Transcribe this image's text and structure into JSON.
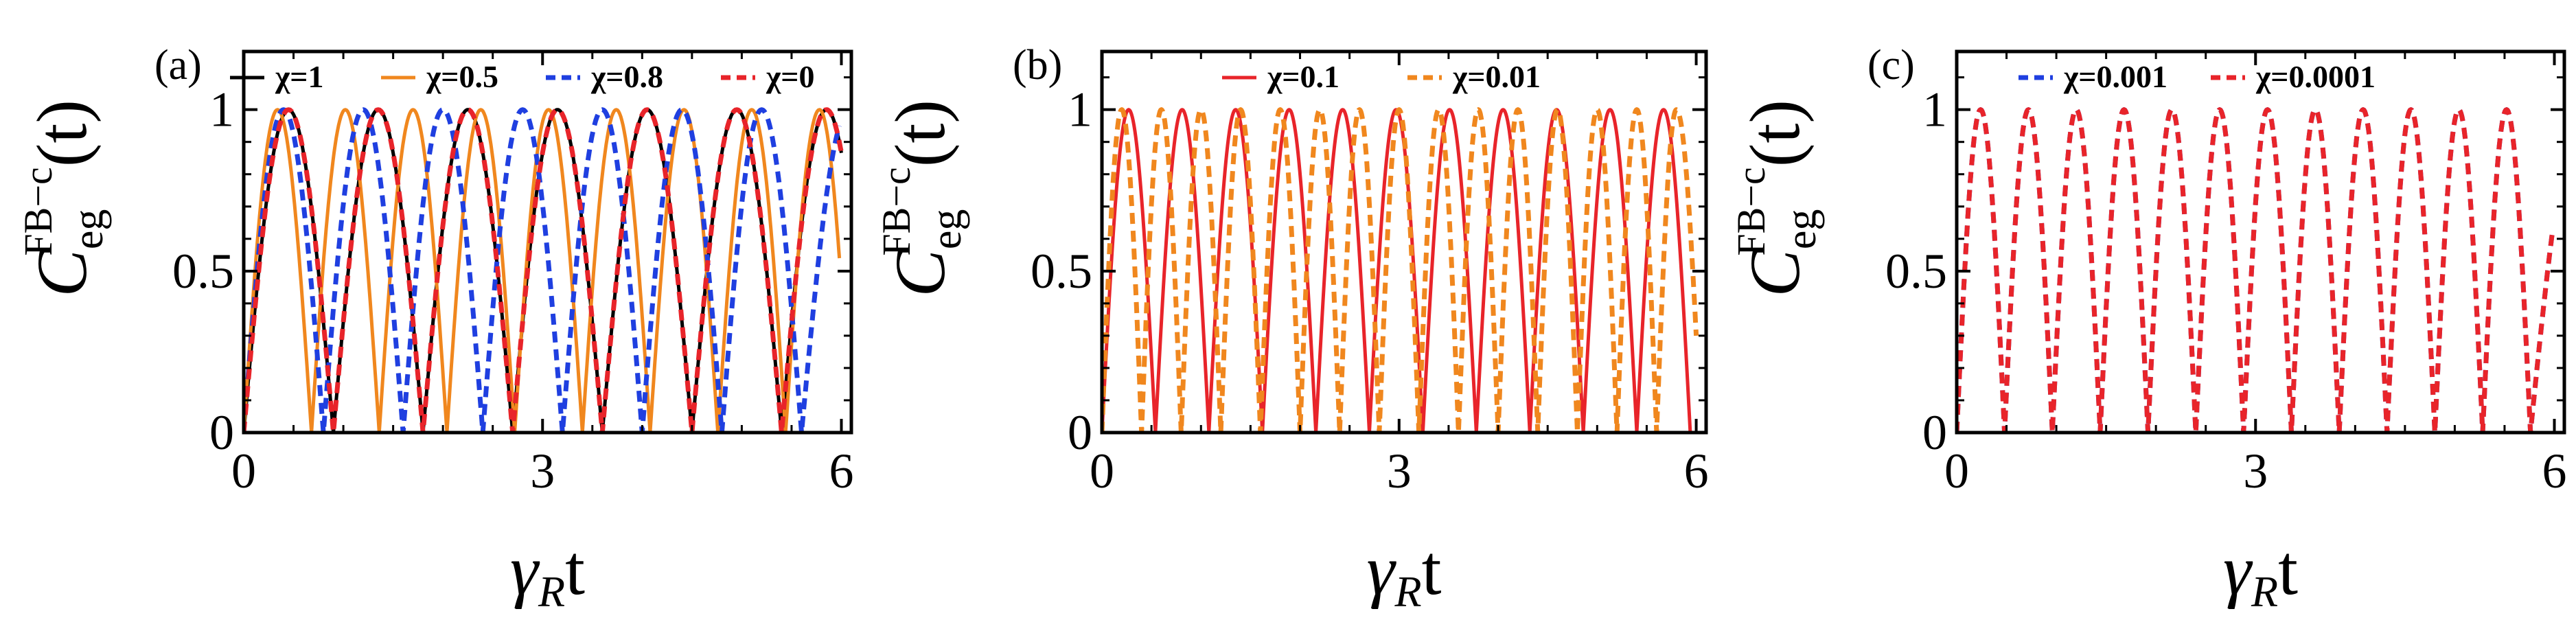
{
  "chart_data": [
    {
      "type": "line",
      "panel_label": "(a)",
      "ylabel": {
        "base": "C",
        "sub": "eg",
        "sup": "FB−c",
        "arg": "(t)"
      },
      "xlabel": {
        "gamma": "γ",
        "sub": "R",
        "t": "t"
      },
      "xlim": [
        0,
        6.1
      ],
      "ylim": [
        0,
        1.18
      ],
      "xticks": [
        "0",
        "3",
        "6"
      ],
      "yticks": [
        "0",
        "0.5",
        "1"
      ],
      "legend_position": "top",
      "series": [
        {
          "name": "χ=1",
          "color": "#000000",
          "dash": "solid",
          "t_max": 6.0,
          "samples": [
            [
              0.0,
              0.0
            ],
            [
              0.225,
              0.707
            ],
            [
              0.45,
              1.0
            ],
            [
              0.675,
              0.707
            ],
            [
              0.9,
              0.0
            ],
            [
              1.125,
              0.707
            ],
            [
              1.35,
              1.0
            ],
            [
              1.575,
              0.707
            ],
            [
              1.8,
              0.0
            ],
            [
              2.025,
              0.707
            ],
            [
              2.25,
              1.0
            ],
            [
              2.475,
              0.707
            ],
            [
              2.7,
              0.0
            ],
            [
              2.925,
              0.707
            ],
            [
              3.15,
              1.0
            ],
            [
              3.375,
              0.707
            ],
            [
              3.6,
              0.0
            ],
            [
              3.825,
              0.707
            ],
            [
              4.05,
              1.0
            ],
            [
              4.275,
              0.707
            ],
            [
              4.5,
              0.0
            ],
            [
              4.725,
              0.707
            ],
            [
              4.95,
              1.0
            ],
            [
              5.175,
              0.707
            ],
            [
              5.4,
              0.0
            ],
            [
              5.625,
              0.707
            ],
            [
              5.85,
              1.0
            ],
            [
              6.0,
              0.866
            ]
          ]
        },
        {
          "name": "χ=0.5",
          "color": "#f0871e",
          "dash": "solid",
          "t_max": 5.98,
          "samples": [
            [
              0.0,
              0.0
            ],
            [
              0.34,
              1.0
            ],
            [
              0.68,
              0.0
            ],
            [
              1.02,
              1.0
            ],
            [
              1.36,
              0.0
            ],
            [
              1.7,
              1.0
            ],
            [
              2.04,
              0.0
            ],
            [
              2.38,
              1.0
            ],
            [
              2.72,
              0.0
            ],
            [
              3.06,
              1.0
            ],
            [
              3.4,
              0.0
            ],
            [
              3.74,
              1.0
            ],
            [
              4.08,
              0.0
            ],
            [
              4.42,
              1.0
            ],
            [
              4.76,
              0.0
            ],
            [
              5.1,
              1.0
            ],
            [
              5.44,
              0.0
            ],
            [
              5.78,
              1.0
            ],
            [
              5.98,
              0.54
            ]
          ]
        },
        {
          "name": "χ=0.8",
          "color": "#1f3fe0",
          "dash": "dashed",
          "t_max": 5.98,
          "samples": [
            [
              0.0,
              0.0
            ],
            [
              0.4,
              1.0
            ],
            [
              0.8,
              0.0
            ],
            [
              1.2,
              1.0
            ],
            [
              1.6,
              0.0
            ],
            [
              2.0,
              1.0
            ],
            [
              2.4,
              0.0
            ],
            [
              2.8,
              1.0
            ],
            [
              3.2,
              0.0
            ],
            [
              3.6,
              1.0
            ],
            [
              4.0,
              0.0
            ],
            [
              4.4,
              1.0
            ],
            [
              4.8,
              0.0
            ],
            [
              5.2,
              1.0
            ],
            [
              5.6,
              0.0
            ],
            [
              5.98,
              0.95
            ]
          ]
        },
        {
          "name": "χ=0",
          "color": "#e8242a",
          "dash": "dashed",
          "t_max": 6.0,
          "samples": [
            [
              0.0,
              0.0
            ],
            [
              0.45,
              1.0
            ],
            [
              0.9,
              0.0
            ],
            [
              1.35,
              1.0
            ],
            [
              1.8,
              0.0
            ],
            [
              2.25,
              1.0
            ],
            [
              2.7,
              0.0
            ],
            [
              3.15,
              1.0
            ],
            [
              3.6,
              0.0
            ],
            [
              4.05,
              1.0
            ],
            [
              4.5,
              0.0
            ],
            [
              4.95,
              1.0
            ],
            [
              5.4,
              0.0
            ],
            [
              5.85,
              1.0
            ],
            [
              6.0,
              0.866
            ]
          ]
        }
      ]
    },
    {
      "type": "line",
      "panel_label": "(b)",
      "ylabel": {
        "base": "C",
        "sub": "eg",
        "sup": "FB−c",
        "arg": "(t)"
      },
      "xlabel": {
        "gamma": "γ",
        "sub": "R",
        "t": "t"
      },
      "xlim": [
        0,
        6.1
      ],
      "ylim": [
        0,
        1.18
      ],
      "xticks": [
        "0",
        "3",
        "6"
      ],
      "yticks": [
        "0",
        "0.5",
        "1"
      ],
      "legend_position": "top",
      "series": [
        {
          "name": "χ=0.1",
          "color": "#e8242a",
          "dash": "solid",
          "t_max": 5.98,
          "samples": [
            [
              0.0,
              0.0
            ],
            [
              0.27,
              1.0
            ],
            [
              0.54,
              0.0
            ],
            [
              0.81,
              1.0
            ],
            [
              1.08,
              0.0
            ],
            [
              1.35,
              1.0
            ],
            [
              1.62,
              0.0
            ],
            [
              1.89,
              1.0
            ],
            [
              2.16,
              0.0
            ],
            [
              2.43,
              1.0
            ],
            [
              2.7,
              0.0
            ],
            [
              2.97,
              1.0
            ],
            [
              3.24,
              0.0
            ],
            [
              3.51,
              1.0
            ],
            [
              3.78,
              0.0
            ],
            [
              4.05,
              1.0
            ],
            [
              4.32,
              0.0
            ],
            [
              4.59,
              1.0
            ],
            [
              4.86,
              0.0
            ],
            [
              5.13,
              1.0
            ],
            [
              5.4,
              0.0
            ],
            [
              5.67,
              1.0
            ],
            [
              5.94,
              0.0
            ]
          ]
        },
        {
          "name": "χ=0.01",
          "color": "#f0871e",
          "dash": "dashed",
          "t_max": 6.0,
          "samples": [
            [
              0.0,
              0.0
            ],
            [
              0.2,
              1.0
            ],
            [
              0.4,
              0.0
            ],
            [
              0.6,
              1.0
            ],
            [
              0.8,
              0.0
            ],
            [
              1.0,
              1.0
            ],
            [
              1.2,
              0.0
            ],
            [
              1.4,
              1.0
            ],
            [
              1.6,
              0.0
            ],
            [
              1.8,
              1.0
            ],
            [
              2.0,
              0.0
            ],
            [
              2.2,
              1.0
            ],
            [
              2.4,
              0.0
            ],
            [
              2.6,
              1.0
            ],
            [
              2.8,
              0.0
            ],
            [
              3.0,
              1.0
            ],
            [
              3.2,
              0.0
            ],
            [
              3.4,
              1.0
            ],
            [
              3.6,
              0.0
            ],
            [
              3.8,
              1.0
            ],
            [
              4.0,
              0.0
            ],
            [
              4.2,
              1.0
            ],
            [
              4.4,
              0.0
            ],
            [
              4.6,
              1.0
            ],
            [
              4.8,
              0.0
            ],
            [
              5.0,
              1.0
            ],
            [
              5.2,
              0.0
            ],
            [
              5.4,
              1.0
            ],
            [
              5.6,
              0.0
            ],
            [
              5.8,
              1.0
            ],
            [
              6.0,
              0.3
            ]
          ]
        }
      ]
    },
    {
      "type": "line",
      "panel_label": "(c)",
      "ylabel": {
        "base": "C",
        "sub": "eg",
        "sup": "FB−c",
        "arg": "(t)"
      },
      "xlabel": {
        "gamma": "γ",
        "sub": "R",
        "t": "t"
      },
      "xlim": [
        0,
        6.1
      ],
      "ylim": [
        0,
        1.18
      ],
      "xticks": [
        "0",
        "3",
        "6"
      ],
      "yticks": [
        "0",
        "0.5",
        "1"
      ],
      "legend_position": "top",
      "series": [
        {
          "name": "χ=0.001",
          "color": "#1f3fe0",
          "dash": "dashed",
          "t_max": 5.98,
          "samples": [
            [
              0.0,
              0.0
            ],
            [
              0.24,
              1.0
            ],
            [
              0.48,
              0.0
            ],
            [
              0.72,
              1.0
            ],
            [
              0.96,
              0.0
            ],
            [
              1.2,
              1.0
            ],
            [
              1.44,
              0.0
            ],
            [
              1.68,
              1.0
            ],
            [
              1.92,
              0.0
            ],
            [
              2.16,
              1.0
            ],
            [
              2.4,
              0.0
            ],
            [
              2.64,
              1.0
            ],
            [
              2.88,
              0.0
            ],
            [
              3.12,
              1.0
            ],
            [
              3.36,
              0.0
            ],
            [
              3.6,
              1.0
            ],
            [
              3.84,
              0.0
            ],
            [
              4.08,
              1.0
            ],
            [
              4.32,
              0.0
            ],
            [
              4.56,
              1.0
            ],
            [
              4.8,
              0.0
            ],
            [
              5.04,
              1.0
            ],
            [
              5.28,
              0.0
            ],
            [
              5.52,
              1.0
            ],
            [
              5.76,
              0.0
            ],
            [
              5.98,
              0.62
            ]
          ]
        },
        {
          "name": "χ=0.0001",
          "color": "#e8242a",
          "dash": "dashed",
          "t_max": 5.98,
          "samples": [
            [
              0.0,
              0.0
            ],
            [
              0.24,
              1.0
            ],
            [
              0.48,
              0.0
            ],
            [
              0.72,
              1.0
            ],
            [
              0.96,
              0.0
            ],
            [
              1.2,
              1.0
            ],
            [
              1.44,
              0.0
            ],
            [
              1.68,
              1.0
            ],
            [
              1.92,
              0.0
            ],
            [
              2.16,
              1.0
            ],
            [
              2.4,
              0.0
            ],
            [
              2.64,
              1.0
            ],
            [
              2.88,
              0.0
            ],
            [
              3.12,
              1.0
            ],
            [
              3.36,
              0.0
            ],
            [
              3.6,
              1.0
            ],
            [
              3.84,
              0.0
            ],
            [
              4.08,
              1.0
            ],
            [
              4.32,
              0.0
            ],
            [
              4.56,
              1.0
            ],
            [
              4.8,
              0.0
            ],
            [
              5.04,
              1.0
            ],
            [
              5.28,
              0.0
            ],
            [
              5.52,
              1.0
            ],
            [
              5.76,
              0.0
            ],
            [
              5.98,
              0.62
            ]
          ]
        }
      ]
    }
  ]
}
